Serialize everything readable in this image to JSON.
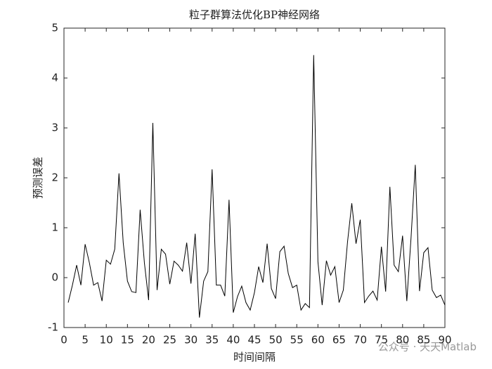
{
  "chart_data": {
    "type": "line",
    "title": "粒子群算法优化BP神经网络",
    "x_label": "时间间隔",
    "y_label": "预测误差",
    "watermark": "公众号 · 天天Matlab",
    "x": [
      1,
      2,
      3,
      4,
      5,
      6,
      7,
      8,
      9,
      10,
      11,
      12,
      13,
      14,
      15,
      16,
      17,
      18,
      19,
      20,
      21,
      22,
      23,
      24,
      25,
      26,
      27,
      28,
      29,
      30,
      31,
      32,
      33,
      34,
      35,
      36,
      37,
      38,
      39,
      40,
      41,
      42,
      43,
      44,
      45,
      46,
      47,
      48,
      49,
      50,
      51,
      52,
      53,
      54,
      55,
      56,
      57,
      58,
      59,
      60,
      61,
      62,
      63,
      64,
      65,
      66,
      67,
      68,
      69,
      70,
      71,
      72,
      73,
      74,
      75,
      76,
      77,
      78,
      79,
      80,
      81,
      82,
      83,
      84,
      85,
      86,
      87,
      88,
      89,
      90
    ],
    "series": [
      {
        "name": "预测误差",
        "color": "#000000",
        "values": [
          -0.5,
          -0.15,
          0.25,
          -0.15,
          0.67,
          0.3,
          -0.15,
          -0.1,
          -0.47,
          0.35,
          0.27,
          0.57,
          2.09,
          0.7,
          -0.07,
          -0.28,
          -0.3,
          1.36,
          0.3,
          -0.45,
          3.1,
          -0.25,
          0.57,
          0.47,
          -0.13,
          0.33,
          0.25,
          0.13,
          0.7,
          -0.12,
          0.88,
          -0.8,
          -0.07,
          0.12,
          2.17,
          -0.15,
          -0.15,
          -0.37,
          1.56,
          -0.7,
          -0.38,
          -0.17,
          -0.5,
          -0.65,
          -0.3,
          0.22,
          -0.1,
          0.68,
          -0.22,
          -0.42,
          0.52,
          0.63,
          0.08,
          -0.2,
          -0.15,
          -0.65,
          -0.52,
          -0.6,
          4.46,
          0.32,
          -0.55,
          0.34,
          0.05,
          0.22,
          -0.5,
          -0.25,
          0.72,
          1.49,
          0.68,
          1.16,
          -0.5,
          -0.37,
          -0.27,
          -0.45,
          0.62,
          -0.28,
          1.82,
          0.25,
          0.12,
          0.84,
          -0.47,
          0.8,
          2.26,
          -0.27,
          0.5,
          0.6,
          -0.25,
          -0.4,
          -0.35,
          -0.55
        ]
      }
    ],
    "xlim": [
      0,
      90
    ],
    "xticks": [
      0,
      5,
      10,
      15,
      20,
      25,
      30,
      35,
      40,
      45,
      50,
      55,
      60,
      65,
      70,
      75,
      80,
      85,
      90
    ],
    "ylim": [
      -1,
      5
    ],
    "yticks": [
      -1,
      0,
      1,
      2,
      3,
      4,
      5
    ],
    "grid": false
  }
}
